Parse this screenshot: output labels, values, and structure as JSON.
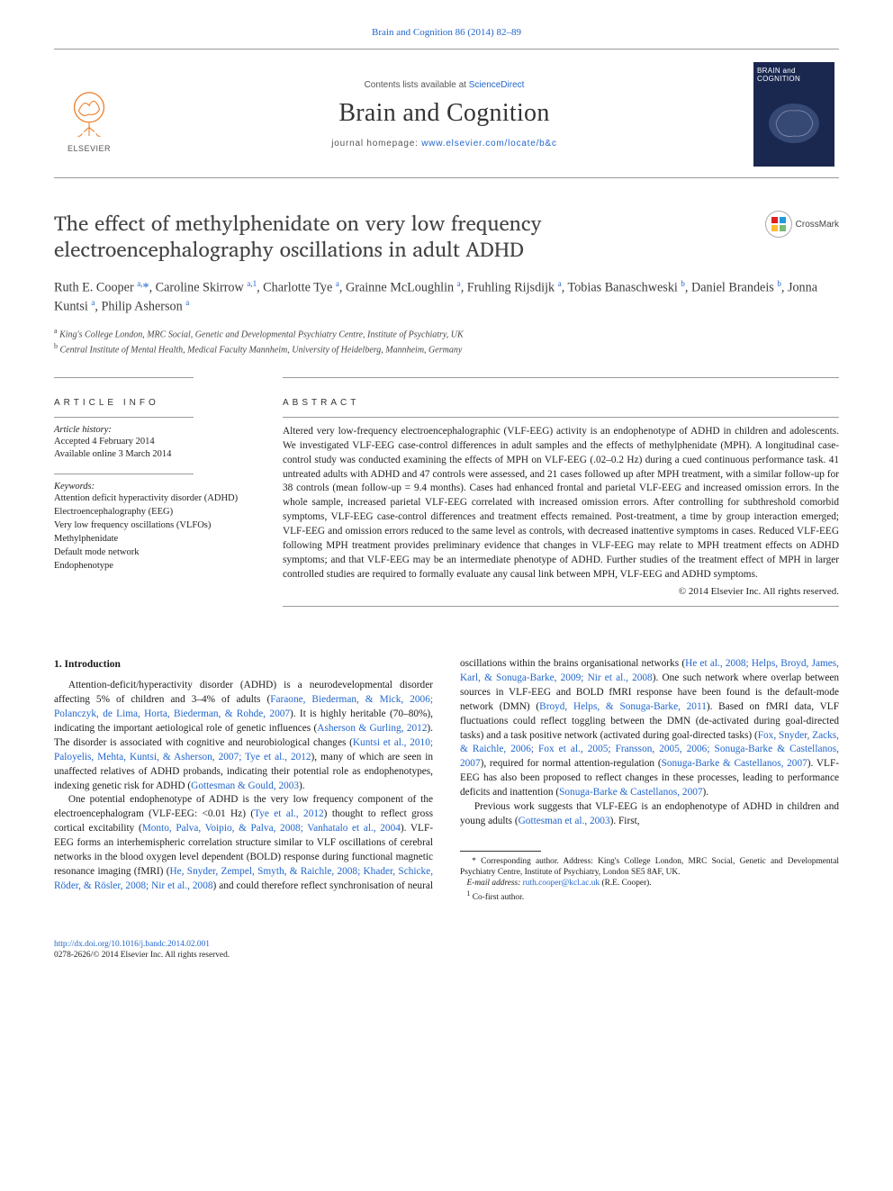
{
  "citation": {
    "text": "Brain and Cognition 86 (2014) 82–89",
    "url_label": "Brain and Cognition 86 (2014) 82–89"
  },
  "masthead": {
    "contents_prefix": "Contents lists available at ",
    "contents_link": "ScienceDirect",
    "journal": "Brain and Cognition",
    "homepage_prefix": "journal homepage: ",
    "homepage_url": "www.elsevier.com/locate/b&c",
    "publisher_word": "ELSEVIER",
    "cover_title_line1": "BRAIN and",
    "cover_title_line2": "COGNITION"
  },
  "crossmark_label": "CrossMark",
  "article": {
    "title": "The effect of methylphenidate on very low frequency electroencephalography oscillations in adult ADHD",
    "authors_html": "Ruth E. Cooper <sup>a,</sup><span class='star'>*</span>, Caroline Skirrow <sup>a,1</sup>, Charlotte Tye <sup>a</sup>, Grainne McLoughlin <sup>a</sup>, Fruhling Rijsdijk <sup>a</sup>, Tobias Banaschweski <sup>b</sup>, Daniel Brandeis <sup>b</sup>, Jonna Kuntsi <sup>a</sup>, Philip Asherson <sup>a</sup>",
    "affiliations": {
      "a": "King's College London, MRC Social, Genetic and Developmental Psychiatry Centre, Institute of Psychiatry, UK",
      "b": "Central Institute of Mental Health, Medical Faculty Mannheim, University of Heidelberg, Mannheim, Germany"
    }
  },
  "article_info": {
    "heading": "ARTICLE INFO",
    "history_label": "Article history:",
    "accepted": "Accepted 4 February 2014",
    "online": "Available online 3 March 2014",
    "keywords_label": "Keywords:",
    "keywords": [
      "Attention deficit hyperactivity disorder (ADHD)",
      "Electroencephalography (EEG)",
      "Very low frequency oscillations (VLFOs)",
      "Methylphenidate",
      "Default mode network",
      "Endophenotype"
    ]
  },
  "abstract": {
    "heading": "ABSTRACT",
    "text": "Altered very low-frequency electroencephalographic (VLF-EEG) activity is an endophenotype of ADHD in children and adolescents. We investigated VLF-EEG case-control differences in adult samples and the effects of methylphenidate (MPH). A longitudinal case-control study was conducted examining the effects of MPH on VLF-EEG (.02–0.2 Hz) during a cued continuous performance task. 41 untreated adults with ADHD and 47 controls were assessed, and 21 cases followed up after MPH treatment, with a similar follow-up for 38 controls (mean follow-up = 9.4 months). Cases had enhanced frontal and parietal VLF-EEG and increased omission errors. In the whole sample, increased parietal VLF-EEG correlated with increased omission errors. After controlling for subthreshold comorbid symptoms, VLF-EEG case-control differences and treatment effects remained. Post-treatment, a time by group interaction emerged; VLF-EEG and omission errors reduced to the same level as controls, with decreased inattentive symptoms in cases. Reduced VLF-EEG following MPH treatment provides preliminary evidence that changes in VLF-EEG may relate to MPH treatment effects on ADHD symptoms; and that VLF-EEG may be an intermediate phenotype of ADHD. Further studies of the treatment effect of MPH in larger controlled studies are required to formally evaluate any causal link between MPH, VLF-EEG and ADHD symptoms.",
    "copyright": "© 2014 Elsevier Inc. All rights reserved."
  },
  "body": {
    "section_heading": "1. Introduction",
    "p1_pre": "Attention-deficit/hyperactivity disorder (ADHD) is a neurodevelopmental disorder affecting 5% of children and 3–4% of adults (",
    "p1_ref1": "Faraone, Biederman, & Mick, 2006; Polanczyk, de Lima, Horta, Biederman, & Rohde, 2007",
    "p1_mid1": "). It is highly heritable (70–80%), indicating the important aetiological role of genetic influences (",
    "p1_ref2": "Asherson & Gurling, 2012",
    "p1_mid2": "). The disorder is associated with cognitive and neurobiological changes (",
    "p1_ref3": "Kuntsi et al., 2010; Paloyelis, Mehta, Kuntsi, & Asherson, 2007; Tye et al., 2012",
    "p1_mid3": "), many of which are seen in unaffected relatives of ADHD probands, indicating their potential role as endophenotypes, indexing genetic risk for ADHD (",
    "p1_ref4": "Gottesman & Gould, 2003",
    "p1_end": ").",
    "p2_pre": "One potential endophenotype of ADHD is the very low frequency component of the electroencephalogram (VLF-EEG: <0.01 Hz) (",
    "p2_ref1": "Tye et al., 2012",
    "p2_mid1": ") thought to reflect gross cortical excitability (",
    "p2_ref2": "Monto, Palva, Voipio, & Palva, 2008; Vanhatalo et al.,",
    "p2b_ref1": "2004",
    "p2b_mid1": "). VLF-EEG forms an interhemispheric correlation structure similar to VLF oscillations of cerebral networks in the blood oxygen level dependent (BOLD) response during functional magnetic resonance imaging (fMRI) (",
    "p2b_ref2": "He, Snyder, Zempel, Smyth, & Raichle, 2008; Khader, Schicke, Röder, & Rösler, 2008; Nir et al., 2008",
    "p2b_mid2": ") and could therefore reflect synchronisation of neural oscillations within the brains organisational networks (",
    "p2b_ref3": "He et al., 2008; Helps, Broyd, James, Karl, & Sonuga-Barke, 2009; Nir et al., 2008",
    "p2b_mid3": "). One such network where overlap between sources in VLF-EEG and BOLD fMRI response have been found is the default-mode network (DMN) (",
    "p2b_ref4": "Broyd, Helps, & Sonuga-Barke, 2011",
    "p2b_mid4": "). Based on fMRI data, VLF fluctuations could reflect toggling between the DMN (de-activated during goal-directed tasks) and a task positive network (activated during goal-directed tasks) (",
    "p2b_ref5": "Fox, Snyder, Zacks, & Raichle, 2006; Fox et al., 2005; Fransson, 2005, 2006; Sonuga-Barke & Castellanos, 2007",
    "p2b_mid5": "), required for normal attention-regulation (",
    "p2b_ref6": "Sonuga-Barke & Castellanos, 2007",
    "p2b_mid6": "). VLF-EEG has also been proposed to reflect changes in these processes, leading to performance deficits and inattention (",
    "p2b_ref7": "Sonuga-Barke & Castellanos, 2007",
    "p2b_end": ").",
    "p3_pre": "Previous work suggests that VLF-EEG is an endophenotype of ADHD in children and young adults (",
    "p3_ref1": "Gottesman et al., 2003",
    "p3_end": "). First,"
  },
  "footnotes": {
    "corr_label": "* Corresponding author. Address: King's College London, MRC Social, Genetic and Developmental Psychiatry Centre, Institute of Psychiatry, London SE5 8AF, UK.",
    "email_label": "E-mail address:",
    "email": "ruth.cooper@kcl.ac.uk",
    "email_of": "(R.E. Cooper).",
    "cofirst": "Co-first author."
  },
  "doi": {
    "url": "http://dx.doi.org/10.1016/j.bandc.2014.02.001",
    "issn_line": "0278-2626/© 2014 Elsevier Inc. All rights reserved."
  },
  "colors": {
    "link": "#2266cc",
    "text": "#1a1a1a",
    "rule": "#999999",
    "elsevier_orange": "#ef7c23",
    "cover_bg": "#1a2850"
  }
}
